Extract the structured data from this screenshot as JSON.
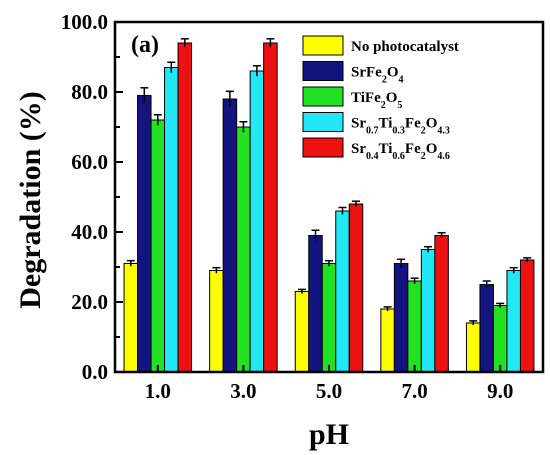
{
  "chart_data": {
    "type": "bar",
    "panel_label": "(a)",
    "xlabel": "pH",
    "ylabel": "Degradation (%)",
    "ylim": [
      0,
      100
    ],
    "yticks": [
      "0.0",
      "20.0",
      "40.0",
      "60.0",
      "80.0",
      "100.0"
    ],
    "categories": [
      "1.0",
      "3.0",
      "5.0",
      "7.0",
      "9.0"
    ],
    "grid": false,
    "legend_position": "top-right",
    "series": [
      {
        "name": "No photocatalyst",
        "name_main": "No photocatalyst",
        "name_parts": [
          {
            "t": "No photocatalyst",
            "sub": false
          }
        ],
        "color": "#ffff00",
        "values": [
          31,
          29,
          23,
          18,
          14
        ],
        "errors": [
          0.8,
          0.8,
          0.6,
          0.6,
          0.6
        ]
      },
      {
        "name": "SrFe2O4",
        "name_parts": [
          {
            "t": "SrFe",
            "sub": false
          },
          {
            "t": "2",
            "sub": true
          },
          {
            "t": "O",
            "sub": false
          },
          {
            "t": "4",
            "sub": true
          }
        ],
        "color": "#141480",
        "values": [
          79,
          78,
          39,
          31,
          25
        ],
        "errors": [
          2.2,
          2.2,
          1.5,
          1.2,
          1.0
        ]
      },
      {
        "name": "TiFe2O5",
        "name_parts": [
          {
            "t": "TiFe",
            "sub": false
          },
          {
            "t": "2",
            "sub": true
          },
          {
            "t": "O",
            "sub": false
          },
          {
            "t": "5",
            "sub": true
          }
        ],
        "color": "#22e022",
        "values": [
          72,
          70,
          31,
          26,
          19
        ],
        "errors": [
          1.5,
          1.5,
          0.8,
          0.8,
          0.6
        ]
      },
      {
        "name": "Sr0.7Ti0.3Fe2O4.3",
        "name_parts": [
          {
            "t": "Sr",
            "sub": false
          },
          {
            "t": "0.7",
            "sub": true
          },
          {
            "t": "Ti",
            "sub": false
          },
          {
            "t": "0.3",
            "sub": true
          },
          {
            "t": "Fe",
            "sub": false
          },
          {
            "t": "2",
            "sub": true
          },
          {
            "t": "O",
            "sub": false
          },
          {
            "t": "4.3",
            "sub": true
          }
        ],
        "color": "#22e8f5",
        "values": [
          87,
          86,
          46,
          35,
          29
        ],
        "errors": [
          1.5,
          1.5,
          1.0,
          0.8,
          0.8
        ]
      },
      {
        "name": "Sr0.4Ti0.6Fe2O4.6",
        "name_parts": [
          {
            "t": "Sr",
            "sub": false
          },
          {
            "t": "0.4",
            "sub": true
          },
          {
            "t": "Ti",
            "sub": false
          },
          {
            "t": "0.6",
            "sub": true
          },
          {
            "t": "Fe",
            "sub": false
          },
          {
            "t": "2",
            "sub": true
          },
          {
            "t": "O",
            "sub": false
          },
          {
            "t": "4.6",
            "sub": true
          }
        ],
        "color": "#ee1111",
        "values": [
          94,
          94,
          48,
          39,
          32
        ],
        "errors": [
          1.2,
          1.2,
          0.8,
          0.8,
          0.6
        ]
      }
    ]
  }
}
